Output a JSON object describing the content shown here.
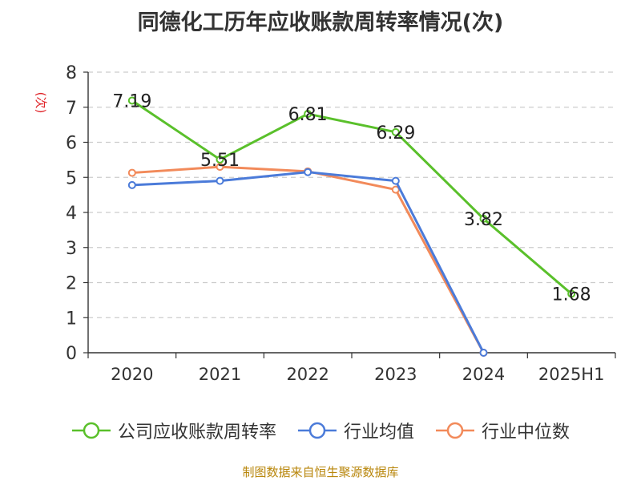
{
  "chart_data": {
    "type": "line",
    "title": "同德化工历年应收账款周转率情况(次)",
    "ylabel": "(次)",
    "categories": [
      "2020",
      "2021",
      "2022",
      "2023",
      "2024",
      "2025H1"
    ],
    "ylim": [
      0,
      8
    ],
    "yticks": [
      "0",
      "1",
      "2",
      "3",
      "4",
      "5",
      "6",
      "7",
      "8"
    ],
    "grid": true,
    "legend_position": "bottom",
    "series": [
      {
        "name": "公司应收账款周转率",
        "color": "#5ac02b",
        "values": [
          7.19,
          5.51,
          6.81,
          6.29,
          3.82,
          1.68
        ],
        "labels": [
          "7.19",
          "5.51",
          "6.81",
          "6.29",
          "3.82",
          "1.68"
        ]
      },
      {
        "name": "行业均值",
        "color": "#4b7bd9",
        "values": [
          4.78,
          4.9,
          5.15,
          4.9,
          0,
          null
        ]
      },
      {
        "name": "行业中位数",
        "color": "#f28a5a",
        "values": [
          5.13,
          5.3,
          5.17,
          4.65,
          0,
          null
        ]
      }
    ],
    "source": "制图数据来自恒生聚源数据库"
  }
}
